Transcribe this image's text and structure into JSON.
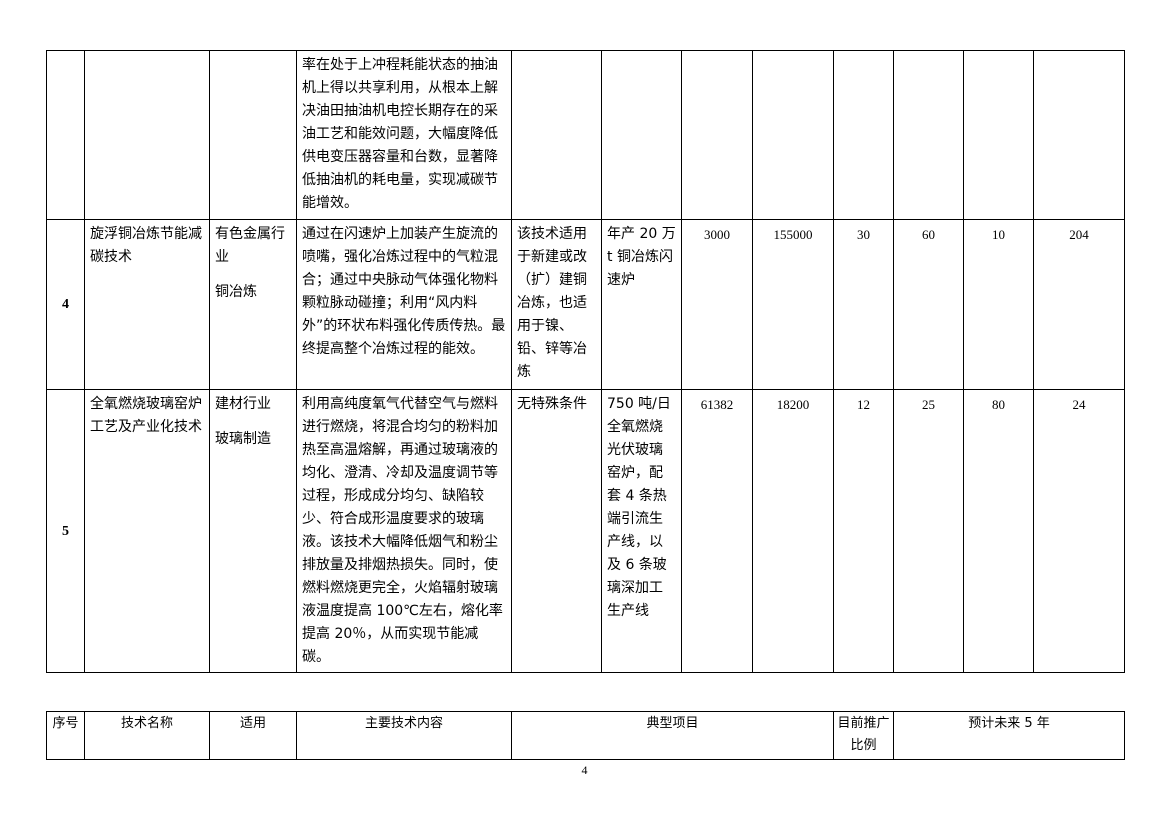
{
  "rows": [
    {
      "index": "",
      "name": "",
      "industry": "",
      "sub_industry": "",
      "content": "率在处于上冲程耗能状态的抽油机上得以共享利用，从根本上解决油田抽油机电控长期存在的采油工艺和能效问题，大幅度降低供电变压器容量和台数，显著降低抽油机的耗电量，实现减碳节能增效。",
      "conditions": "",
      "project": "",
      "v1": "",
      "v2": "",
      "v3": "",
      "v4": "",
      "v5": "",
      "v6": ""
    },
    {
      "index": "4",
      "name": "旋浮铜冶炼节能减碳技术",
      "industry": "有色金属行业",
      "sub_industry": "铜冶炼",
      "content": "通过在闪速炉上加装产生旋流的喷嘴，强化冶炼过程中的气粒混合；通过中央脉动气体强化物料颗粒脉动碰撞；利用“风内料外”的环状布料强化传质传热。最终提高整个冶炼过程的能效。",
      "conditions": "该技术适用于新建或改（扩）建铜冶炼，也适用于镍、铅、锌等冶炼",
      "project": "年产 20 万 t 铜冶炼闪速炉",
      "v1": "3000",
      "v2": "155000",
      "v3": "30",
      "v4": "60",
      "v5": "10",
      "v6": "204"
    },
    {
      "index": "5",
      "name": "全氧燃烧玻璃窑炉工艺及产业化技术",
      "industry": "建材行业",
      "sub_industry": "玻璃制造",
      "content": "利用高纯度氧气代替空气与燃料进行燃烧，将混合均匀的粉料加热至高温熔解，再通过玻璃液的均化、澄清、冷却及温度调节等过程，形成成分均匀、缺陷较少、符合成形温度要求的玻璃液。该技术大幅降低烟气和粉尘排放量及排烟热损失。同时，使燃料燃烧更完全，火焰辐射玻璃液温度提高 100℃左右，熔化率提高 20％，从而实现节能减碳。",
      "conditions": "无特殊条件",
      "project": "750 吨/日全氧燃烧光伏玻璃窑炉，配套 4 条热端引流生产线，以及 6 条玻璃深加工生产线",
      "v1": "61382",
      "v2": "18200",
      "v3": "12",
      "v4": "25",
      "v5": "80",
      "v6": "24"
    }
  ],
  "header": {
    "index": "序号",
    "name": "技术名称",
    "scope": "适用",
    "content": "主要技术内容",
    "project": "典型项目",
    "ratio": "目前推广比例",
    "forecast": "预计未来 5 年"
  },
  "page_number": "4"
}
